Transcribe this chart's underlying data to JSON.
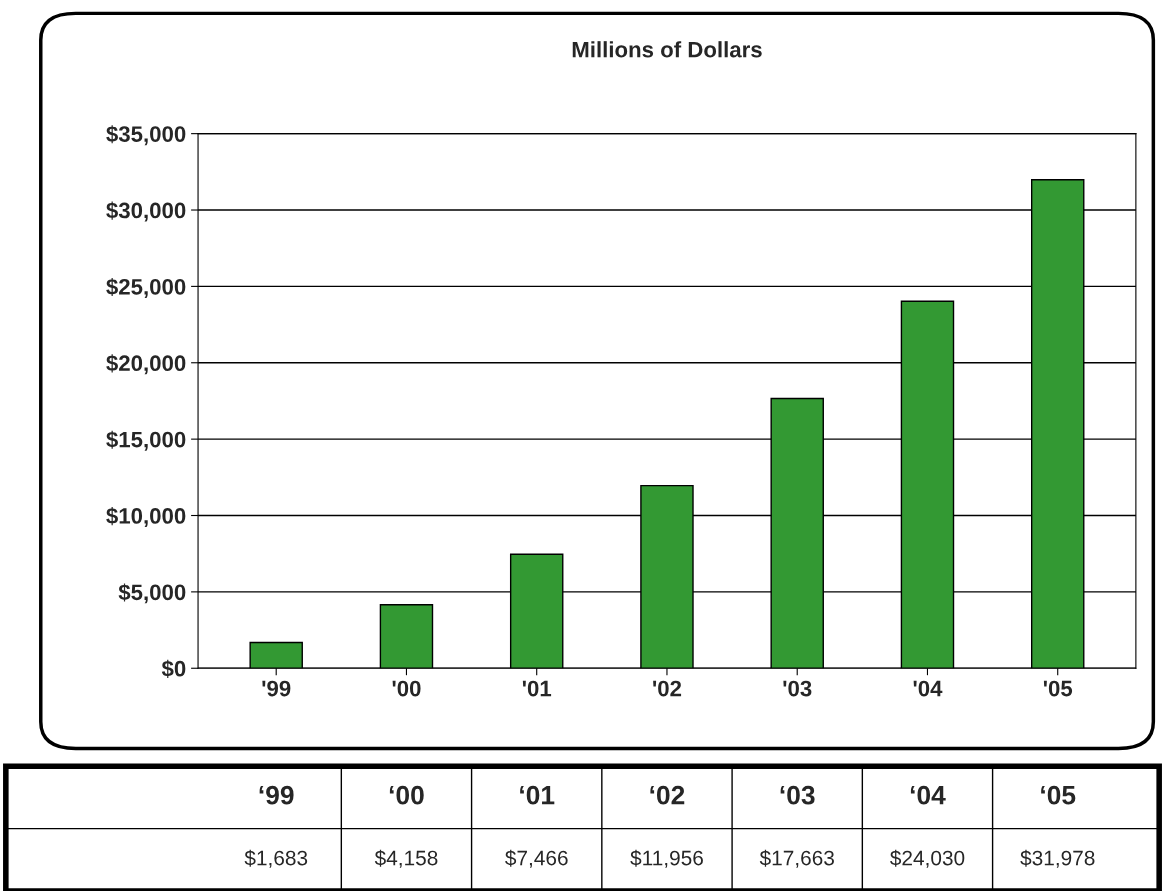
{
  "chart_data": {
    "type": "bar",
    "title": "Millions of Dollars",
    "categories": [
      "'99",
      "'00",
      "'01",
      "'02",
      "'03",
      "'04",
      "'05"
    ],
    "values": [
      1683,
      4158,
      7466,
      11956,
      17663,
      24030,
      31978
    ],
    "value_labels": [
      "$1,683",
      "$4,158",
      "$7,466",
      "$11,956",
      "$17,663",
      "$24,030",
      "$31,978"
    ],
    "color": "#339933",
    "ylim": [
      0,
      35000
    ],
    "yticks": [
      {
        "value": 0,
        "label": "$0"
      },
      {
        "value": 5000,
        "label": "$5,000"
      },
      {
        "value": 10000,
        "label": "$10,000"
      },
      {
        "value": 15000,
        "label": "$15,000"
      },
      {
        "value": 20000,
        "label": "$20,000"
      },
      {
        "value": 25000,
        "label": "$25,000"
      },
      {
        "value": 30000,
        "label": "$30,000"
      },
      {
        "value": 35000,
        "label": "$35,000"
      }
    ],
    "grid": "y",
    "annotations": [
      "‘99",
      "‘00",
      "‘01",
      "‘02",
      "‘03",
      "‘04",
      "‘05"
    ]
  }
}
